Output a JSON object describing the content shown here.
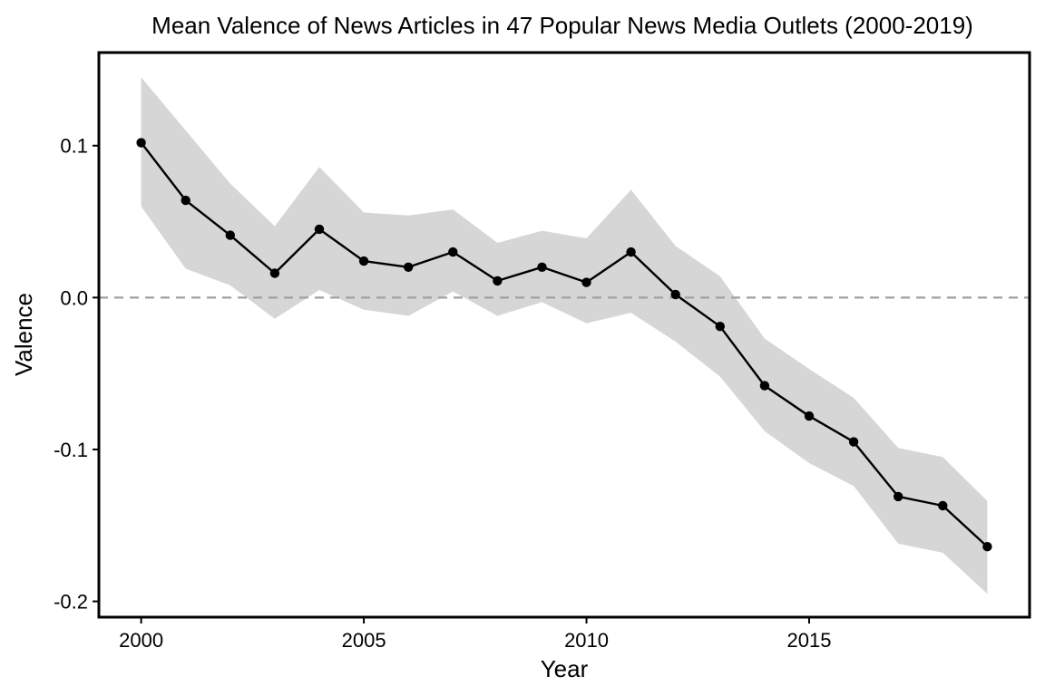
{
  "chart_data": {
    "type": "line",
    "title": "Mean Valence of News Articles in 47 Popular News Media Outlets (2000-2019)",
    "xlabel": "Year",
    "ylabel": "Valence",
    "x": [
      2000,
      2001,
      2002,
      2003,
      2004,
      2005,
      2006,
      2007,
      2008,
      2009,
      2010,
      2011,
      2012,
      2013,
      2014,
      2015,
      2016,
      2017,
      2018,
      2019
    ],
    "series": [
      {
        "values": [
          0.102,
          0.064,
          0.041,
          0.016,
          0.045,
          0.024,
          0.02,
          0.03,
          0.011,
          0.02,
          0.01,
          0.03,
          0.002,
          -0.019,
          -0.058,
          -0.078,
          -0.095,
          -0.131,
          -0.137,
          -0.164
        ],
        "upper": [
          0.145,
          0.11,
          0.075,
          0.047,
          0.086,
          0.056,
          0.054,
          0.058,
          0.036,
          0.044,
          0.039,
          0.071,
          0.034,
          0.014,
          -0.027,
          -0.047,
          -0.066,
          -0.099,
          -0.105,
          -0.134
        ],
        "lower": [
          0.06,
          0.019,
          0.008,
          -0.014,
          0.005,
          -0.008,
          -0.012,
          0.004,
          -0.012,
          -0.003,
          -0.017,
          -0.01,
          -0.029,
          -0.052,
          -0.088,
          -0.109,
          -0.124,
          -0.162,
          -0.168,
          -0.195
        ],
        "color": "#000000",
        "band_color": "#d6d6d6"
      }
    ],
    "reference_line": {
      "y": 0.0,
      "style": "dashed",
      "color": "#a0a0a0"
    },
    "xticks": [
      2000,
      2005,
      2010,
      2015
    ],
    "xtick_labels": [
      "2000",
      "2005",
      "2010",
      "2015"
    ],
    "yticks": [
      0.1,
      0.0,
      -0.1,
      -0.2
    ],
    "ytick_labels": [
      "0.1",
      "0.0",
      "-0.1",
      "-0.2"
    ],
    "xlim": [
      1999.05,
      2019.95
    ],
    "ylim": [
      -0.2104,
      0.1613
    ],
    "grid": false,
    "legend": "none"
  }
}
